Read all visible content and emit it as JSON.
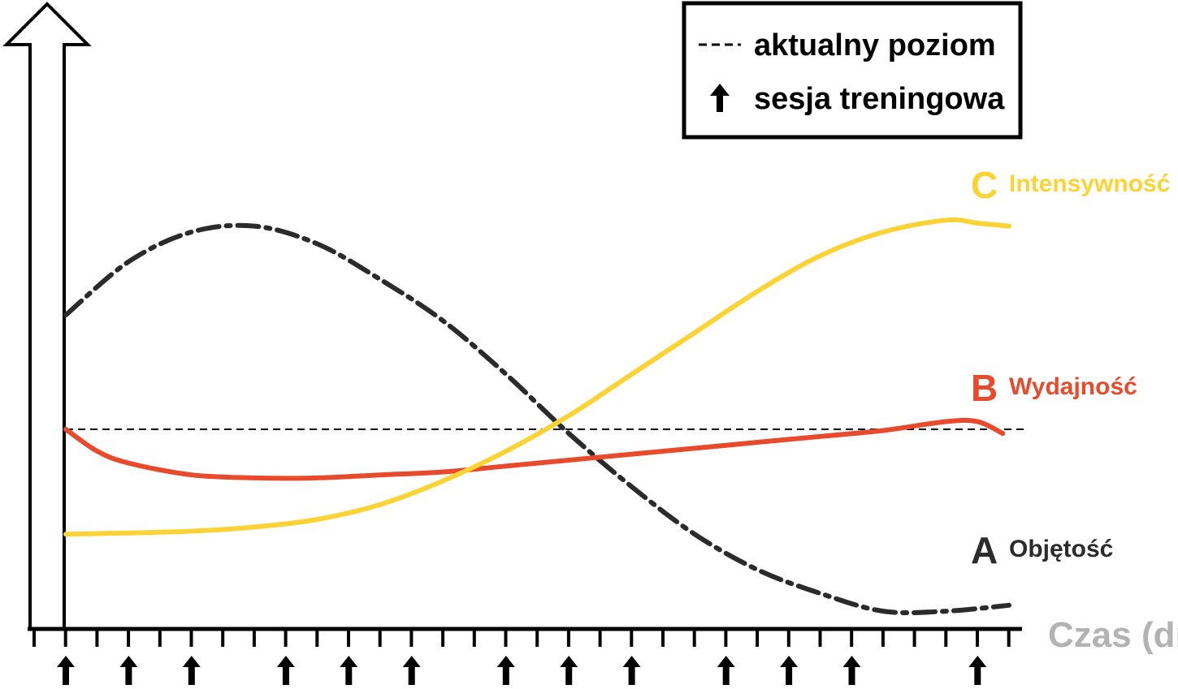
{
  "chart_data": {
    "type": "line",
    "xlabel": "Czas (dni)",
    "ylabel": "",
    "x_domain": [
      0,
      30
    ],
    "y_domain": [
      0,
      10
    ],
    "legend": {
      "placement": "top-right",
      "items": [
        {
          "symbol": "dashed-line",
          "label": "aktualny poziom"
        },
        {
          "symbol": "up-arrow-icon",
          "label": "sesja treningowa"
        }
      ]
    },
    "current_level": 3.37,
    "training_sessions": [
      1,
      3,
      5,
      8,
      10,
      12,
      15,
      17,
      19,
      22,
      24,
      26,
      30
    ],
    "tick_count": 32,
    "series": [
      {
        "letter": "A",
        "name": "Objętość",
        "color": "#2b2b2b",
        "style": "dash-dot",
        "x": [
          1,
          3,
          5,
          7,
          9,
          11,
          13,
          15,
          17,
          19,
          21,
          23,
          25,
          27,
          29,
          31
        ],
        "y": [
          5.3,
          6.2,
          6.7,
          6.8,
          6.5,
          5.9,
          5.2,
          4.3,
          3.3,
          2.4,
          1.6,
          1.0,
          0.6,
          0.3,
          0.3,
          0.4
        ]
      },
      {
        "letter": "B",
        "name": "Wydajność",
        "color": "#e84a2c",
        "style": "solid",
        "x": [
          1,
          2,
          3,
          5,
          7,
          9,
          11,
          13,
          15,
          17,
          19,
          21,
          23,
          25,
          27,
          29,
          30,
          30.8
        ],
        "y": [
          3.37,
          3.0,
          2.8,
          2.6,
          2.55,
          2.55,
          2.6,
          2.65,
          2.75,
          2.85,
          2.95,
          3.05,
          3.15,
          3.25,
          3.35,
          3.5,
          3.5,
          3.3
        ]
      },
      {
        "letter": "C",
        "name": "Intensywność",
        "color": "#fcd335",
        "style": "solid",
        "x": [
          1,
          3,
          5,
          7,
          9,
          11,
          13,
          15,
          17,
          19,
          21,
          23,
          25,
          27,
          29,
          30,
          31
        ],
        "y": [
          1.6,
          1.62,
          1.65,
          1.72,
          1.85,
          2.1,
          2.5,
          3.0,
          3.6,
          4.3,
          5.0,
          5.7,
          6.3,
          6.7,
          6.9,
          6.85,
          6.8
        ]
      }
    ]
  }
}
